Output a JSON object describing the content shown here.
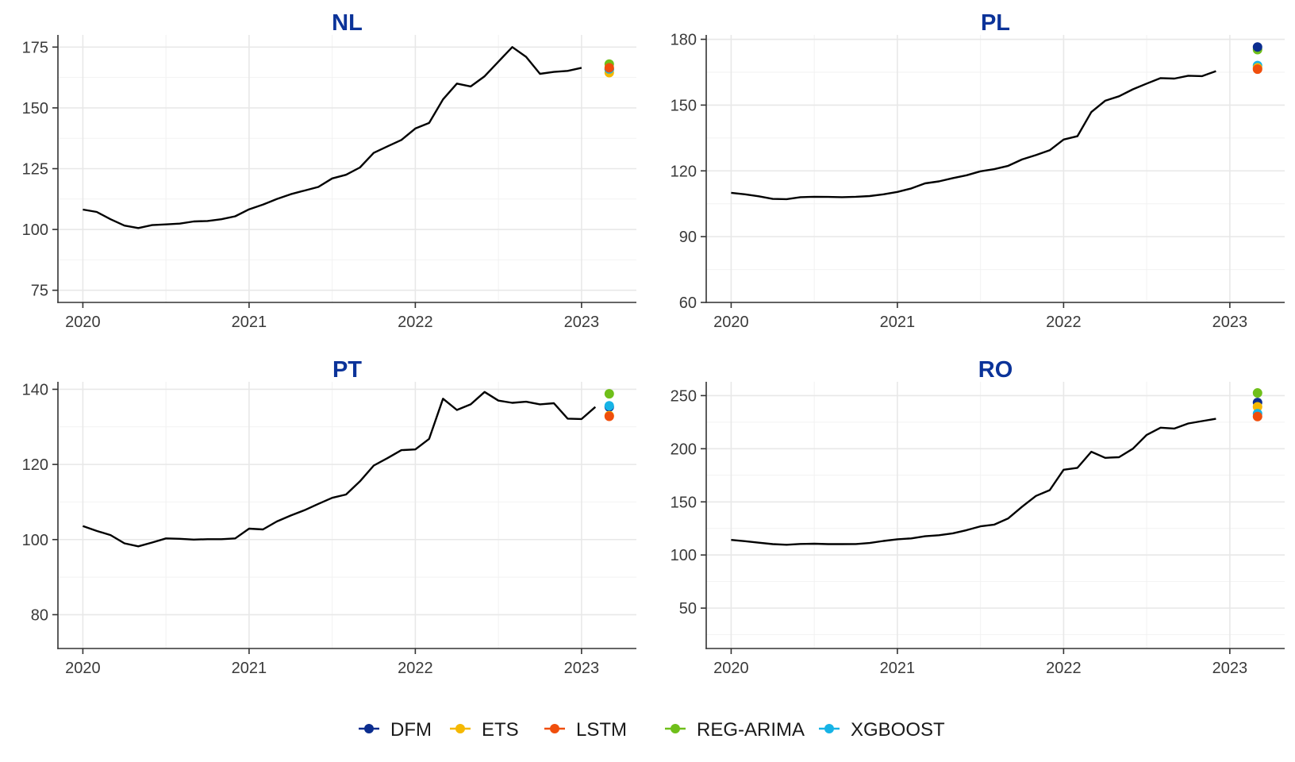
{
  "chart_data": {
    "type": "line",
    "x_ticks": [
      "2020",
      "2021",
      "2022",
      "2023"
    ],
    "legend": {
      "placement": "bottom",
      "entries": [
        {
          "name": "DFM",
          "color": "#0b2d8f"
        },
        {
          "name": "ETS",
          "color": "#f5b800"
        },
        {
          "name": "LSTM",
          "color": "#f04e0c"
        },
        {
          "name": "REG-ARIMA",
          "color": "#6fbf1a"
        },
        {
          "name": "XGBOOST",
          "color": "#16b3e6"
        }
      ]
    },
    "panels": [
      {
        "title": "NL",
        "ylim": [
          70,
          180
        ],
        "y_ticks": [
          75,
          100,
          125,
          150,
          175
        ],
        "grid": true,
        "series": {
          "x": [
            "2020-01",
            "2020-02",
            "2020-03",
            "2020-04",
            "2020-05",
            "2020-06",
            "2020-07",
            "2020-08",
            "2020-09",
            "2020-10",
            "2020-11",
            "2020-12",
            "2021-01",
            "2021-02",
            "2021-03",
            "2021-04",
            "2021-05",
            "2021-06",
            "2021-07",
            "2021-08",
            "2021-09",
            "2021-10",
            "2021-11",
            "2021-12",
            "2022-01",
            "2022-02",
            "2022-03",
            "2022-04",
            "2022-05",
            "2022-06",
            "2022-07",
            "2022-08",
            "2022-09",
            "2022-10",
            "2022-11",
            "2022-12",
            "2023-01"
          ],
          "y": [
            108.2,
            107.2,
            104.2,
            101.6,
            100.6,
            101.8,
            102.1,
            102.4,
            103.3,
            103.5,
            104.2,
            105.4,
            108.3,
            110.2,
            112.5,
            114.5,
            116.0,
            117.5,
            121.0,
            122.5,
            125.5,
            131.5,
            134.2,
            136.8,
            141.5,
            143.8,
            153.5,
            160.0,
            158.8,
            163.0,
            169.0,
            175.0,
            171.0,
            164.0,
            164.8,
            165.2,
            166.5
          ]
        },
        "forecasts": [
          {
            "model": "DFM",
            "x": "2023-03",
            "y": 165.8
          },
          {
            "model": "ETS",
            "x": "2023-03",
            "y": 164.5
          },
          {
            "model": "REG-ARIMA",
            "x": "2023-03",
            "y": 168.0
          },
          {
            "model": "XGBOOST",
            "x": "2023-03",
            "y": 166.0
          },
          {
            "model": "LSTM",
            "x": "2023-03",
            "y": 166.5
          }
        ]
      },
      {
        "title": "PL",
        "ylim": [
          60,
          182
        ],
        "y_ticks": [
          60,
          90,
          120,
          150,
          180
        ],
        "grid": true,
        "series": {
          "x": [
            "2020-01",
            "2020-02",
            "2020-03",
            "2020-04",
            "2020-05",
            "2020-06",
            "2020-07",
            "2020-08",
            "2020-09",
            "2020-10",
            "2020-11",
            "2020-12",
            "2021-01",
            "2021-02",
            "2021-03",
            "2021-04",
            "2021-05",
            "2021-06",
            "2021-07",
            "2021-08",
            "2021-09",
            "2021-10",
            "2021-11",
            "2021-12",
            "2022-01",
            "2022-02",
            "2022-03",
            "2022-04",
            "2022-05",
            "2022-06",
            "2022-07",
            "2022-08",
            "2022-09",
            "2022-10",
            "2022-11",
            "2022-12"
          ],
          "y": [
            110.0,
            109.3,
            108.4,
            107.2,
            107.1,
            108.0,
            108.2,
            108.1,
            108.0,
            108.2,
            108.5,
            109.3,
            110.4,
            112.0,
            114.3,
            115.2,
            116.7,
            118.0,
            119.8,
            120.8,
            122.3,
            125.2,
            127.2,
            129.4,
            134.3,
            135.8,
            146.8,
            152.0,
            154.0,
            157.2,
            159.8,
            162.3,
            162.1,
            163.4,
            163.2,
            165.5
          ]
        },
        "forecasts": [
          {
            "model": "REG-ARIMA",
            "x": "2023-03",
            "y": 175.3
          },
          {
            "model": "DFM",
            "x": "2023-03",
            "y": 176.5
          },
          {
            "model": "XGBOOST",
            "x": "2023-03",
            "y": 168.0
          },
          {
            "model": "ETS",
            "x": "2023-03",
            "y": 167.0
          },
          {
            "model": "LSTM",
            "x": "2023-03",
            "y": 166.4
          }
        ]
      },
      {
        "title": "PT",
        "ylim": [
          71,
          142
        ],
        "y_ticks": [
          80,
          100,
          120,
          140
        ],
        "grid": true,
        "series": {
          "x": [
            "2020-01",
            "2020-02",
            "2020-03",
            "2020-04",
            "2020-05",
            "2020-06",
            "2020-07",
            "2020-08",
            "2020-09",
            "2020-10",
            "2020-11",
            "2020-12",
            "2021-01",
            "2021-02",
            "2021-03",
            "2021-04",
            "2021-05",
            "2021-06",
            "2021-07",
            "2021-08",
            "2021-09",
            "2021-10",
            "2021-11",
            "2021-12",
            "2022-01",
            "2022-02",
            "2022-03",
            "2022-04",
            "2022-05",
            "2022-06",
            "2022-07",
            "2022-08",
            "2022-09",
            "2022-10",
            "2022-11",
            "2022-12",
            "2023-01",
            "2023-02"
          ],
          "y": [
            103.6,
            102.3,
            101.2,
            99.0,
            98.2,
            99.2,
            100.3,
            100.2,
            100.0,
            100.1,
            100.1,
            100.3,
            102.9,
            102.7,
            104.8,
            106.4,
            107.8,
            109.5,
            111.1,
            112.0,
            115.5,
            119.7,
            121.7,
            123.8,
            124.0,
            126.8,
            137.5,
            134.5,
            136.0,
            139.3,
            137.0,
            136.4,
            136.7,
            136.0,
            136.3,
            132.2,
            132.1,
            135.3
          ]
        },
        "forecasts": [
          {
            "model": "REG-ARIMA",
            "x": "2023-03",
            "y": 138.8
          },
          {
            "model": "DFM",
            "x": "2023-03",
            "y": 135.3
          },
          {
            "model": "XGBOOST",
            "x": "2023-03",
            "y": 135.6
          },
          {
            "model": "ETS",
            "x": "2023-03",
            "y": 133.0
          },
          {
            "model": "LSTM",
            "x": "2023-03",
            "y": 132.8
          }
        ]
      },
      {
        "title": "RO",
        "ylim": [
          12,
          263
        ],
        "y_ticks": [
          50,
          100,
          150,
          200,
          250
        ],
        "grid": true,
        "series": {
          "x": [
            "2020-01",
            "2020-02",
            "2020-03",
            "2020-04",
            "2020-05",
            "2020-06",
            "2020-07",
            "2020-08",
            "2020-09",
            "2020-10",
            "2020-11",
            "2020-12",
            "2021-01",
            "2021-02",
            "2021-03",
            "2021-04",
            "2021-05",
            "2021-06",
            "2021-07",
            "2021-08",
            "2021-09",
            "2021-10",
            "2021-11",
            "2021-12",
            "2022-01",
            "2022-02",
            "2022-03",
            "2022-04",
            "2022-05",
            "2022-06",
            "2022-07",
            "2022-08",
            "2022-09",
            "2022-10",
            "2022-11",
            "2022-12"
          ],
          "y": [
            114.2,
            113.0,
            111.6,
            110.2,
            109.6,
            110.4,
            110.6,
            110.2,
            110.2,
            110.3,
            111.3,
            113.2,
            114.8,
            115.6,
            117.6,
            118.6,
            120.4,
            123.4,
            127.0,
            128.6,
            134.4,
            145.4,
            155.6,
            161.0,
            180.2,
            182.0,
            197.2,
            191.4,
            192.0,
            200.0,
            213.0,
            219.8,
            219.0,
            223.8,
            226.0,
            228.2
          ]
        },
        "forecasts": [
          {
            "model": "REG-ARIMA",
            "x": "2023-03",
            "y": 252.5
          },
          {
            "model": "DFM",
            "x": "2023-03",
            "y": 243.5
          },
          {
            "model": "ETS",
            "x": "2023-03",
            "y": 239.5
          },
          {
            "model": "XGBOOST",
            "x": "2023-03",
            "y": 233.0
          },
          {
            "model": "LSTM",
            "x": "2023-03",
            "y": 230.3
          }
        ]
      }
    ]
  }
}
